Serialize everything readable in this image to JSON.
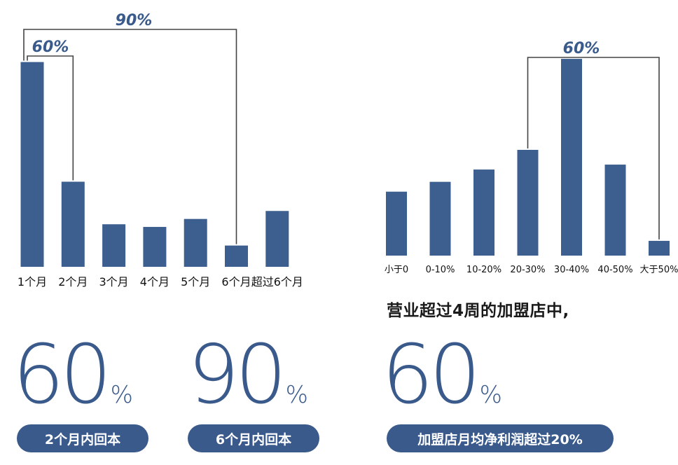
{
  "chart_data": [
    {
      "type": "bar",
      "categories": [
        "1个月",
        "2个月",
        "3个月",
        "4个月",
        "5个月",
        "6个月",
        "超过6个月"
      ],
      "values": [
        38.5,
        16,
        8,
        7.5,
        9,
        4,
        10.5
      ],
      "ylim": [
        0,
        42
      ],
      "xlabel": "",
      "ylabel": "",
      "annotations": [
        {
          "label": "60%",
          "from_category": "1个月",
          "to_category": "2个月"
        },
        {
          "label": "90%",
          "from_category": "1个月",
          "to_category": "6个月"
        }
      ]
    },
    {
      "type": "bar",
      "categories": [
        "小于0",
        "0-10%",
        "10-20%",
        "20-30%",
        "30-40%",
        "40-50%",
        "大于50%"
      ],
      "values": [
        13,
        15,
        17.5,
        21.5,
        40,
        18.5,
        3
      ],
      "ylim": [
        0,
        42
      ],
      "xlabel": "",
      "ylabel": "",
      "annotations": [
        {
          "label": "60%",
          "from_category": "20-30%",
          "to_category": "大于50%"
        }
      ]
    }
  ],
  "caption": "营业超过4周的加盟店中,",
  "stats": [
    {
      "value": "60",
      "unit": "%",
      "label": "2个月内回本"
    },
    {
      "value": "90",
      "unit": "%",
      "label": "6个月内回本"
    },
    {
      "value": "60",
      "unit": "%",
      "label": "加盟店月均净利润超过20%"
    }
  ],
  "colors": {
    "bar": "#3d5f8f",
    "accent": "#3a5a8c",
    "bracket": "#444444",
    "text": "#111111"
  }
}
